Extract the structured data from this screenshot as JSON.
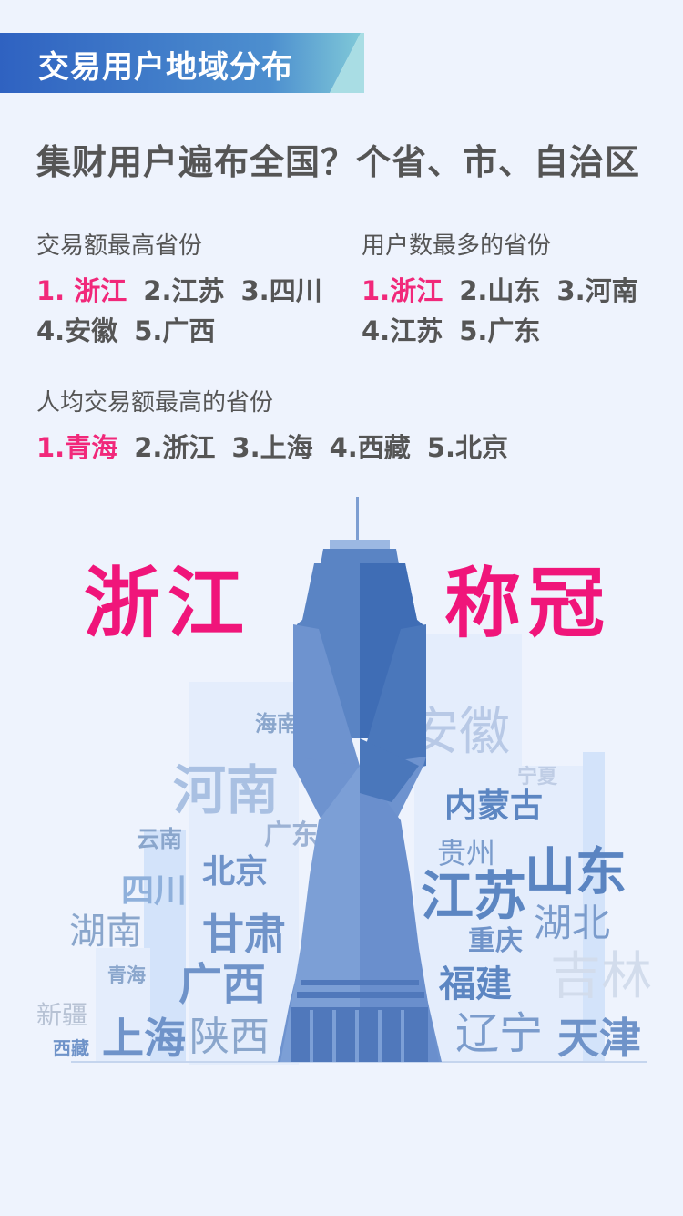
{
  "banner": {
    "title": "交易用户地域分布"
  },
  "headline": "集财用户遍布全国？个省、市、自治区",
  "sections": {
    "top_amount": {
      "label": "交易额最高省份",
      "items": [
        "1. 浙江",
        "2.江苏",
        "3.四川",
        "4.安徽",
        "5.广西"
      ]
    },
    "top_users": {
      "label": "用户数最多的省份",
      "items": [
        "1.浙江",
        "2.山东",
        "3.河南",
        "4.江苏",
        "5.广东"
      ]
    },
    "top_per_capita": {
      "label": "人均交易额最高的省份",
      "items": [
        "1.青海",
        "2.浙江",
        "3.上海",
        "4.西藏",
        "5.北京"
      ]
    }
  },
  "hero": {
    "left": "浙江",
    "right": "称冠"
  },
  "words": {
    "hainan": "海南",
    "anhui": "安徽",
    "henan": "河南",
    "ningxia": "宁夏",
    "neimenggu": "内蒙古",
    "yunnan": "云南",
    "guangdong": "广东",
    "guizhou": "贵州",
    "beijing": "北京",
    "sichuan": "四川",
    "jiangsu": "江苏",
    "shandong": "山东",
    "hunan": "湖南",
    "gansu": "甘肃",
    "hubei": "湖北",
    "chongqing": "重庆",
    "qinghai": "青海",
    "guangxi": "广西",
    "fujian": "福建",
    "jilin": "吉林",
    "xinjiang": "新疆",
    "xizang": "西藏",
    "shanghai": "上海",
    "shaanxi": "陕西",
    "liaoning": "辽宁",
    "tianjin": "天津"
  },
  "colors": {
    "accent": "#f1287a",
    "banner_start": "#3a6fc9",
    "banner_end": "#8fd3dc",
    "tower": "#6b92cf"
  }
}
